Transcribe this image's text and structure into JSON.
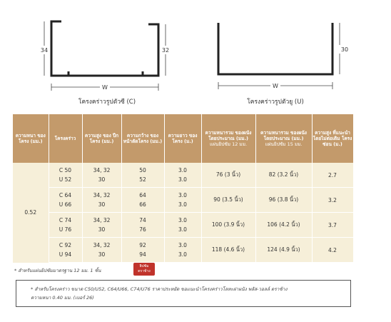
{
  "diagrams": {
    "c_profile": {
      "flange_left": "34",
      "flange_right": "32",
      "width": "W",
      "caption": "โครงคร่าวรูปตัวซี (C)"
    },
    "u_profile": {
      "flange": "30",
      "width": "W",
      "caption": "โครงคร่าวรูปตัวยู (U)"
    }
  },
  "table": {
    "headers": [
      {
        "title": "ความหนา ของ โครง (มม.)"
      },
      {
        "title": "โครงคร่าว"
      },
      {
        "title": "ความสูง ของ ปีกโครง (มม.)"
      },
      {
        "title": "ความกว้าง ของ หน้าตัดโครง (มม.)"
      },
      {
        "title": "ความยาว ของ โครง (ม.)"
      },
      {
        "title": "ความหนารวม ของผนัง โดยประมาณ (มม.)",
        "sub": "แผ่นยิปซัม 12 มม."
      },
      {
        "title": "ความหนารวม ของผนัง โดยประมาณ (มม.)",
        "sub": "แผ่นยิปซัม 15 มม."
      },
      {
        "title": "ความสูง ที่แนะนำ โดยไม่ต่อเติม โครงซ่อน (ม.)"
      }
    ],
    "thickness": "0.52",
    "groups": [
      {
        "frames": [
          "C 50",
          "U 52"
        ],
        "flange": [
          "34, 32",
          "30"
        ],
        "width": [
          "50",
          "52"
        ],
        "length": [
          "3.0",
          "3.0"
        ],
        "wall_12": "76 (3 นิ้ว)",
        "wall_15": "82 (3.2 นิ้ว)",
        "max_height": "2.7"
      },
      {
        "frames": [
          "C 64",
          "U 66"
        ],
        "flange": [
          "34, 32",
          "30"
        ],
        "width": [
          "64",
          "66"
        ],
        "length": [
          "3.0",
          "3.0"
        ],
        "wall_12": "90 (3.5 นิ้ว)",
        "wall_15": "96 (3.8 นิ้ว)",
        "max_height": "3.2"
      },
      {
        "frames": [
          "C 74",
          "U 76"
        ],
        "flange": [
          "34, 32",
          "30"
        ],
        "width": [
          "74",
          "76"
        ],
        "length": [
          "3.0",
          "3.0"
        ],
        "wall_12": "100 (3.9 นิ้ว)",
        "wall_15": "106 (4.2 นิ้ว)",
        "max_height": "3.7"
      },
      {
        "frames": [
          "C 92",
          "U 94"
        ],
        "flange": [
          "34, 32",
          "30"
        ],
        "width": [
          "92",
          "94"
        ],
        "length": [
          "3.0",
          "3.0"
        ],
        "wall_12": "118 (4.6 นิ้ว)",
        "wall_15": "124 (4.9 นิ้ว)",
        "max_height": "4.2"
      }
    ]
  },
  "footnote": "* สำหรับแผ่นยิปซัมมาตรฐาน 12 มม. 1 ชั้น",
  "logo": {
    "line1": "ยิปซัม",
    "line2": "ตราช้าง"
  },
  "note_box": {
    "line1": "* สำหรับโครงคร่าว ขนาด C50/U52, C64/U66, C74/U76 ราคาประหยัด ขอแนะนำโครงคร่าวโลหะฝาผนัง พลัส-วอลล์ ตราช้าง",
    "line2": "ความหนา 0.40 มม. (เบอร์ 26)"
  }
}
